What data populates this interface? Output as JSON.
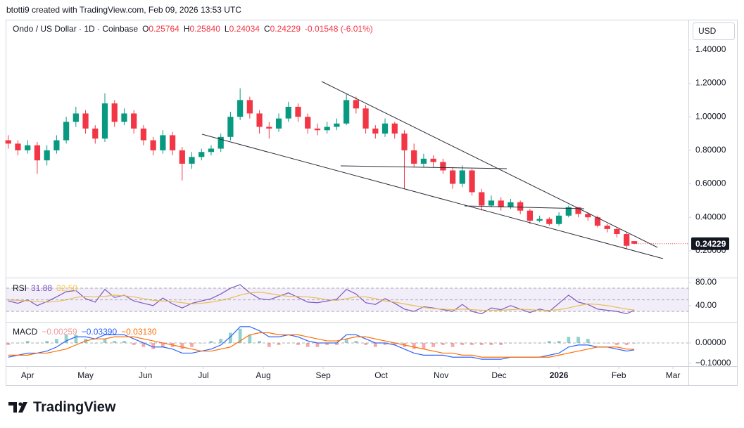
{
  "header": {
    "credit": "btotti9 created with TradingView.com, Feb 09, 2026 13:53 UTC"
  },
  "chart_data": [
    {
      "type": "candlestick",
      "title": "Ondo / US Dollar · 1D · Coinbase",
      "legend": [
        {
          "key": "O",
          "text": "0.25764"
        },
        {
          "key": "H",
          "text": "0.25840"
        },
        {
          "key": "L",
          "text": "0.24034"
        },
        {
          "key": "C",
          "text": "0.24229"
        },
        {
          "key": "",
          "text": "-0.01548 (-6.01%)"
        }
      ],
      "currency": "USD",
      "up_color": "#089981",
      "down_color": "#f23645",
      "x": [
        "2025-03-22",
        "2025-03-27",
        "2025-04-01",
        "2025-04-06",
        "2025-04-11",
        "2025-04-16",
        "2025-04-21",
        "2025-04-26",
        "2025-05-01",
        "2025-05-06",
        "2025-05-11",
        "2025-05-16",
        "2025-05-21",
        "2025-05-26",
        "2025-05-31",
        "2025-06-05",
        "2025-06-10",
        "2025-06-15",
        "2025-06-20",
        "2025-06-25",
        "2025-06-30",
        "2025-07-05",
        "2025-07-10",
        "2025-07-15",
        "2025-07-20",
        "2025-07-25",
        "2025-07-30",
        "2025-08-04",
        "2025-08-09",
        "2025-08-14",
        "2025-08-19",
        "2025-08-24",
        "2025-08-29",
        "2025-09-03",
        "2025-09-08",
        "2025-09-13",
        "2025-09-18",
        "2025-09-23",
        "2025-09-28",
        "2025-10-03",
        "2025-10-08",
        "2025-10-13",
        "2025-10-18",
        "2025-10-23",
        "2025-10-28",
        "2025-11-02",
        "2025-11-07",
        "2025-11-12",
        "2025-11-17",
        "2025-11-22",
        "2025-11-27",
        "2025-12-02",
        "2025-12-07",
        "2025-12-12",
        "2025-12-17",
        "2025-12-22",
        "2025-12-27",
        "2026-01-01",
        "2026-01-06",
        "2026-01-11",
        "2026-01-16",
        "2026-01-21",
        "2026-01-26",
        "2026-01-31",
        "2026-02-05",
        "2026-02-09"
      ],
      "open": [
        0.86,
        0.84,
        0.8,
        0.83,
        0.74,
        0.8,
        0.86,
        0.97,
        1.02,
        0.93,
        0.87,
        1.08,
        0.97,
        1.02,
        0.93,
        0.86,
        0.8,
        0.89,
        0.8,
        0.72,
        0.76,
        0.79,
        0.81,
        0.88,
        1.0,
        1.1,
        1.02,
        0.94,
        0.93,
        0.99,
        1.06,
        1.0,
        0.93,
        0.92,
        0.94,
        0.96,
        1.1,
        1.05,
        0.93,
        0.9,
        0.96,
        0.9,
        0.8,
        0.72,
        0.75,
        0.73,
        0.68,
        0.6,
        0.68,
        0.55,
        0.47,
        0.5,
        0.46,
        0.49,
        0.44,
        0.38,
        0.39,
        0.36,
        0.41,
        0.46,
        0.42,
        0.4,
        0.35,
        0.33,
        0.3,
        0.25764
      ],
      "high": [
        0.89,
        0.86,
        0.86,
        0.85,
        0.83,
        0.89,
        1.0,
        1.06,
        1.04,
        0.95,
        1.14,
        1.1,
        1.05,
        1.04,
        0.95,
        0.88,
        0.92,
        0.91,
        0.82,
        0.79,
        0.81,
        0.83,
        0.9,
        1.03,
        1.17,
        1.12,
        1.04,
        0.97,
        1.02,
        1.09,
        1.08,
        1.02,
        0.96,
        0.97,
        0.99,
        1.14,
        1.12,
        1.07,
        0.95,
        0.99,
        0.97,
        0.92,
        0.84,
        0.78,
        0.77,
        0.75,
        0.7,
        0.71,
        0.69,
        0.57,
        0.53,
        0.52,
        0.51,
        0.5,
        0.45,
        0.41,
        0.4,
        0.43,
        0.47,
        0.46,
        0.43,
        0.41,
        0.36,
        0.34,
        0.31,
        0.2584
      ],
      "low": [
        0.81,
        0.77,
        0.78,
        0.66,
        0.71,
        0.78,
        0.84,
        0.94,
        0.9,
        0.84,
        0.85,
        0.94,
        0.95,
        0.9,
        0.83,
        0.77,
        0.78,
        0.77,
        0.62,
        0.69,
        0.74,
        0.77,
        0.79,
        0.86,
        0.98,
        0.99,
        0.9,
        0.87,
        0.91,
        0.97,
        0.97,
        0.9,
        0.89,
        0.9,
        0.92,
        0.95,
        1.02,
        0.9,
        0.87,
        0.88,
        0.87,
        0.57,
        0.7,
        0.7,
        0.7,
        0.66,
        0.57,
        0.58,
        0.53,
        0.44,
        0.46,
        0.44,
        0.45,
        0.42,
        0.36,
        0.37,
        0.35,
        0.35,
        0.4,
        0.4,
        0.38,
        0.34,
        0.31,
        0.28,
        0.21,
        0.24034
      ],
      "close": [
        0.84,
        0.8,
        0.83,
        0.74,
        0.8,
        0.86,
        0.97,
        1.02,
        0.93,
        0.87,
        1.08,
        0.97,
        1.02,
        0.93,
        0.86,
        0.8,
        0.89,
        0.8,
        0.72,
        0.76,
        0.79,
        0.81,
        0.88,
        1.0,
        1.1,
        1.02,
        0.94,
        0.93,
        0.99,
        1.06,
        1.0,
        0.93,
        0.92,
        0.94,
        0.96,
        1.1,
        1.05,
        0.93,
        0.9,
        0.96,
        0.9,
        0.8,
        0.72,
        0.75,
        0.73,
        0.68,
        0.6,
        0.68,
        0.55,
        0.47,
        0.5,
        0.46,
        0.49,
        0.44,
        0.38,
        0.39,
        0.36,
        0.41,
        0.46,
        0.42,
        0.4,
        0.35,
        0.33,
        0.3,
        0.23,
        0.24229
      ],
      "last_price": 0.24229,
      "ylim": [
        0.04,
        1.58
      ],
      "yticks": [
        {
          "value": 0.2,
          "label": "0.20000"
        },
        {
          "value": 0.4,
          "label": "0.40000"
        },
        {
          "value": 0.6,
          "label": "0.60000"
        },
        {
          "value": 0.8,
          "label": "0.80000"
        },
        {
          "value": 1.0,
          "label": "1.00000"
        },
        {
          "value": 1.2,
          "label": "1.20000"
        },
        {
          "value": 1.4,
          "label": "1.40000"
        }
      ],
      "xlim": [
        "2025-03-21",
        "2026-03-09"
      ],
      "xticks": [
        {
          "value": "2025-04-01",
          "label": "Apr"
        },
        {
          "value": "2025-05-01",
          "label": "May"
        },
        {
          "value": "2025-06-01",
          "label": "Jun"
        },
        {
          "value": "2025-07-01",
          "label": "Jul"
        },
        {
          "value": "2025-08-01",
          "label": "Aug"
        },
        {
          "value": "2025-09-01",
          "label": "Sep"
        },
        {
          "value": "2025-10-01",
          "label": "Oct"
        },
        {
          "value": "2025-11-01",
          "label": "Nov"
        },
        {
          "value": "2025-12-01",
          "label": "Dec"
        },
        {
          "value": "2026-01-01",
          "label": "2026"
        },
        {
          "value": "2026-02-01",
          "label": "Feb"
        },
        {
          "value": "2026-03-01",
          "label": "Mar"
        }
      ]
    },
    {
      "type": "line",
      "title": "RSI",
      "series": [
        {
          "name": "RSI",
          "color": "#7e57c2",
          "values": [
            48,
            44,
            50,
            40,
            47,
            55,
            64,
            66,
            52,
            46,
            68,
            54,
            58,
            48,
            44,
            40,
            53,
            43,
            36,
            44,
            48,
            52,
            60,
            70,
            76,
            62,
            52,
            50,
            56,
            62,
            54,
            46,
            45,
            48,
            51,
            68,
            60,
            45,
            42,
            52,
            44,
            34,
            30,
            38,
            36,
            33,
            30,
            42,
            30,
            26,
            36,
            33,
            40,
            34,
            28,
            34,
            30,
            44,
            58,
            46,
            42,
            34,
            32,
            30,
            26,
            31.88
          ]
        },
        {
          "name": "RSI MA",
          "color": "#f7c948",
          "value_label": "32.50",
          "values": [
            50,
            49,
            48,
            47,
            46,
            47,
            50,
            54,
            56,
            55,
            56,
            58,
            57,
            55,
            52,
            49,
            48,
            47,
            45,
            43,
            44,
            46,
            49,
            53,
            58,
            62,
            63,
            61,
            58,
            56,
            56,
            55,
            53,
            50,
            49,
            52,
            55,
            55,
            52,
            48,
            46,
            43,
            40,
            37,
            35,
            34,
            33,
            34,
            33,
            32,
            32,
            32,
            33,
            34,
            33,
            32,
            32,
            33,
            36,
            40,
            43,
            42,
            40,
            37,
            34,
            32.5
          ]
        }
      ],
      "levels": [
        70,
        50,
        30
      ],
      "band_color": "#7e57c2",
      "ylim": [
        12,
        87
      ],
      "yticks": [
        {
          "value": 80,
          "label": "80.00"
        },
        {
          "value": 40,
          "label": "40.00"
        }
      ]
    },
    {
      "type": "macd",
      "title": "MACD",
      "up_color": "#26a69a",
      "down_color": "#ef5350",
      "series": [
        {
          "name": "Histogram",
          "color": "#ef9a9a",
          "value_label": "−0.00259",
          "values": [
            -0.01,
            0,
            0.01,
            0,
            0.01,
            0.02,
            0.04,
            0.04,
            0.02,
            0,
            0.02,
            0.01,
            0.01,
            -0.01,
            -0.02,
            -0.03,
            -0.02,
            -0.02,
            -0.03,
            -0.02,
            0,
            0.01,
            0.02,
            0.05,
            0.07,
            0.04,
            0.01,
            -0.02,
            -0.01,
            0,
            -0.01,
            -0.02,
            -0.02,
            -0.01,
            -0.01,
            0.02,
            0.01,
            -0.01,
            -0.02,
            -0.01,
            -0.01,
            -0.02,
            -0.03,
            -0.03,
            -0.02,
            -0.01,
            -0.02,
            -0.01,
            -0.01,
            -0.01,
            -0.01,
            -0.01,
            0,
            0,
            0,
            0,
            0.01,
            0.01,
            0.03,
            0.03,
            0.02,
            0,
            0,
            -0.01,
            -0.01,
            -0.00259
          ]
        },
        {
          "name": "MACD",
          "color": "#2962ff",
          "value_label": "−0.03390",
          "values": [
            -0.07,
            -0.06,
            -0.05,
            -0.05,
            -0.04,
            -0.02,
            0.01,
            0.03,
            0.03,
            0.02,
            0.04,
            0.04,
            0.04,
            0.02,
            0,
            -0.02,
            -0.02,
            -0.03,
            -0.05,
            -0.05,
            -0.04,
            -0.03,
            -0.01,
            0.03,
            0.08,
            0.08,
            0.06,
            0.03,
            0.03,
            0.04,
            0.03,
            0.01,
            0,
            0,
            0,
            0.04,
            0.04,
            0.02,
            0,
            0,
            -0.01,
            -0.03,
            -0.05,
            -0.06,
            -0.06,
            -0.06,
            -0.07,
            -0.07,
            -0.07,
            -0.08,
            -0.08,
            -0.08,
            -0.07,
            -0.07,
            -0.07,
            -0.07,
            -0.06,
            -0.05,
            -0.02,
            -0.01,
            -0.01,
            -0.02,
            -0.02,
            -0.03,
            -0.04,
            -0.0339
          ]
        },
        {
          "name": "Signal",
          "color": "#ff6d00",
          "value_label": "−0.03130",
          "values": [
            -0.06,
            -0.06,
            -0.06,
            -0.05,
            -0.05,
            -0.04,
            -0.03,
            -0.01,
            0.01,
            0.02,
            0.02,
            0.03,
            0.03,
            0.03,
            0.02,
            0.01,
            0,
            -0.01,
            -0.02,
            -0.03,
            -0.04,
            -0.04,
            -0.03,
            -0.02,
            0.01,
            0.04,
            0.05,
            0.05,
            0.04,
            0.04,
            0.04,
            0.03,
            0.02,
            0.01,
            0.01,
            0.02,
            0.03,
            0.03,
            0.02,
            0.01,
            0,
            -0.01,
            -0.02,
            -0.03,
            -0.04,
            -0.05,
            -0.05,
            -0.06,
            -0.06,
            -0.07,
            -0.07,
            -0.07,
            -0.07,
            -0.07,
            -0.07,
            -0.07,
            -0.07,
            -0.06,
            -0.05,
            -0.04,
            -0.03,
            -0.02,
            -0.02,
            -0.02,
            -0.03,
            -0.0313
          ]
        }
      ],
      "levels": [
        0
      ],
      "ylim": [
        -0.114,
        0.1
      ],
      "yticks": [
        {
          "value": 0,
          "label": "0.00000"
        },
        {
          "value": -0.1,
          "label": "−0.10000"
        }
      ]
    }
  ],
  "footer": {
    "logo": "TradingView"
  }
}
